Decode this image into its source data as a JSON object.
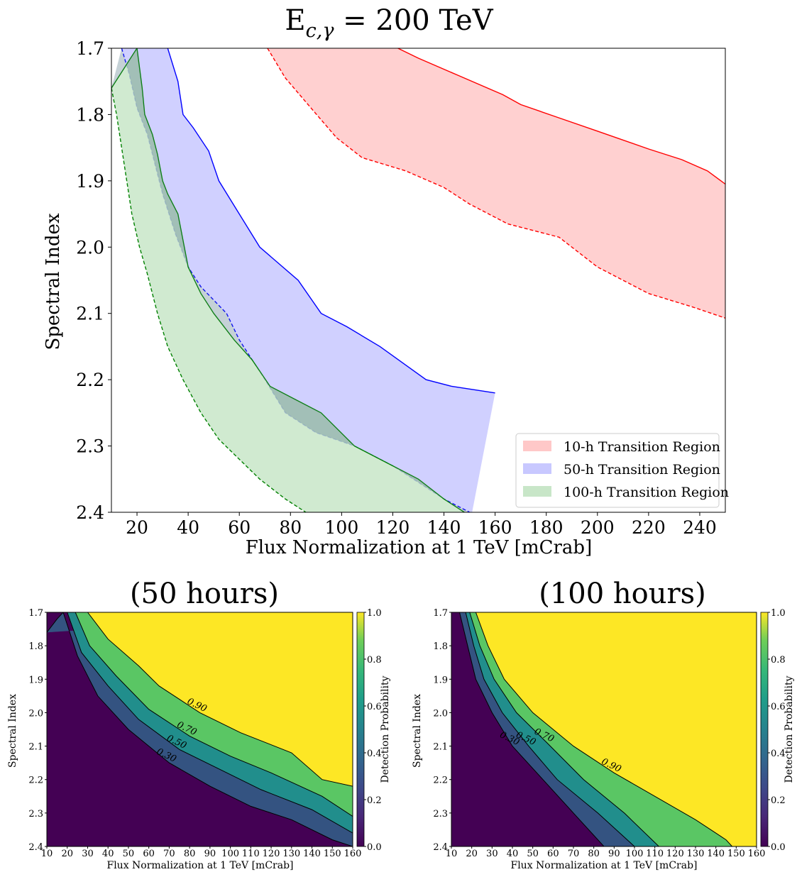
{
  "chart_data": [
    {
      "type": "area",
      "title": "E",
      "title_sub": "c,γ",
      "title_rest": " = 200 TeV",
      "xlabel": "Flux Normalization at 1 TeV [mCrab]",
      "ylabel": "Spectral Index",
      "xlim": [
        10,
        250
      ],
      "ylim": [
        1.7,
        2.4
      ],
      "y_inverted": true,
      "xticks": [
        20,
        40,
        60,
        80,
        100,
        120,
        140,
        160,
        180,
        200,
        220,
        240
      ],
      "yticks": [
        1.7,
        1.8,
        1.9,
        2.0,
        2.1,
        2.2,
        2.3,
        2.4
      ],
      "legend_position": "bottom-right",
      "series": [
        {
          "name": "10-h Transition Region",
          "color": "#ff0000",
          "fill": "#ffc8c8",
          "upper": [
            [
              122,
              1.7
            ],
            [
              130,
              1.715
            ],
            [
              145,
              1.74
            ],
            [
              163,
              1.77
            ],
            [
              170,
              1.785
            ],
            [
              185,
              1.805
            ],
            [
              200,
              1.825
            ],
            [
              220,
              1.852
            ],
            [
              233,
              1.868
            ],
            [
              243,
              1.885
            ],
            [
              250,
              1.905
            ]
          ],
          "lower": [
            [
              71,
              1.7
            ],
            [
              78,
              1.745
            ],
            [
              88,
              1.79
            ],
            [
              98,
              1.835
            ],
            [
              108,
              1.865
            ],
            [
              125,
              1.885
            ],
            [
              140,
              1.91
            ],
            [
              150,
              1.935
            ],
            [
              165,
              1.965
            ],
            [
              185,
              1.985
            ],
            [
              200,
              2.03
            ],
            [
              220,
              2.07
            ],
            [
              237,
              2.09
            ],
            [
              250,
              2.107
            ]
          ]
        },
        {
          "name": "50-h Transition Region",
          "color": "#0000ff",
          "fill": "#c8c8ff",
          "upper": [
            [
              32,
              1.7
            ],
            [
              36,
              1.75
            ],
            [
              38,
              1.8
            ],
            [
              42,
              1.82
            ],
            [
              48,
              1.855
            ],
            [
              52,
              1.9
            ],
            [
              60,
              1.95
            ],
            [
              68,
              2.0
            ],
            [
              83,
              2.05
            ],
            [
              92,
              2.1
            ],
            [
              102,
              2.12
            ],
            [
              115,
              2.15
            ],
            [
              124,
              2.175
            ],
            [
              133,
              2.2
            ],
            [
              143,
              2.21
            ],
            [
              160,
              2.22
            ]
          ],
          "lower": [
            [
              14,
              1.7
            ],
            [
              17,
              1.74
            ],
            [
              20,
              1.79
            ],
            [
              24,
              1.83
            ],
            [
              26,
              1.86
            ],
            [
              30,
              1.92
            ],
            [
              35,
              1.98
            ],
            [
              40,
              2.03
            ],
            [
              45,
              2.06
            ],
            [
              55,
              2.1
            ],
            [
              60,
              2.14
            ],
            [
              65,
              2.17
            ],
            [
              70,
              2.2
            ],
            [
              78,
              2.25
            ],
            [
              90,
              2.28
            ],
            [
              105,
              2.3
            ],
            [
              120,
              2.33
            ],
            [
              140,
              2.38
            ],
            [
              150,
              2.4
            ]
          ],
          "close_to": [
            [
              160,
              2.22
            ],
            [
              151,
              2.4
            ]
          ]
        },
        {
          "name": "100-h Transition Region",
          "color": "#008000",
          "fill": "#c8e6c8",
          "upper": [
            [
              10,
              1.76
            ],
            [
              15,
              1.73
            ],
            [
              20,
              1.7
            ],
            [
              22,
              1.76
            ],
            [
              23,
              1.8
            ],
            [
              26,
              1.83
            ],
            [
              28,
              1.86
            ],
            [
              30,
              1.9
            ],
            [
              32,
              1.92
            ],
            [
              36,
              1.95
            ],
            [
              40,
              2.03
            ],
            [
              45,
              2.07
            ],
            [
              50,
              2.1
            ],
            [
              58,
              2.14
            ],
            [
              65,
              2.17
            ],
            [
              72,
              2.21
            ],
            [
              82,
              2.23
            ],
            [
              92,
              2.25
            ],
            [
              105,
              2.3
            ],
            [
              120,
              2.33
            ],
            [
              130,
              2.35
            ],
            [
              140,
              2.38
            ],
            [
              148,
              2.4
            ]
          ],
          "lower": [
            [
              10,
              1.76
            ],
            [
              12,
              1.8
            ],
            [
              14,
              1.85
            ],
            [
              16,
              1.9
            ],
            [
              18,
              1.95
            ],
            [
              21,
              2.0
            ],
            [
              24,
              2.04
            ],
            [
              28,
              2.1
            ],
            [
              32,
              2.15
            ],
            [
              38,
              2.2
            ],
            [
              45,
              2.25
            ],
            [
              52,
              2.29
            ],
            [
              60,
              2.32
            ],
            [
              68,
              2.35
            ],
            [
              78,
              2.38
            ],
            [
              86,
              2.4
            ]
          ]
        }
      ]
    },
    {
      "type": "heatmap",
      "title": "(50 hours)",
      "xlabel": "Flux Normalization at 1 TeV [mCrab]",
      "ylabel": "Spectral Index",
      "colorbar_label": "Detection Probability",
      "xlim": [
        10,
        160
      ],
      "ylim": [
        1.7,
        2.4
      ],
      "y_inverted": true,
      "xticks": [
        10,
        20,
        30,
        40,
        50,
        60,
        70,
        80,
        90,
        100,
        110,
        120,
        130,
        140,
        150,
        160
      ],
      "yticks": [
        1.7,
        1.8,
        1.9,
        2.0,
        2.1,
        2.2,
        2.3,
        2.4
      ],
      "cbar_ticks": [
        0.0,
        0.2,
        0.4,
        0.6,
        0.8,
        1.0
      ],
      "contours": [
        {
          "level": 0.3,
          "label": "0.30",
          "points": [
            [
              10,
              1.76
            ],
            [
              15,
              1.72
            ],
            [
              18,
              1.7
            ],
            [
              25,
              1.83
            ],
            [
              35,
              1.95
            ],
            [
              50,
              2.05
            ],
            [
              70,
              2.15
            ],
            [
              90,
              2.22
            ],
            [
              110,
              2.28
            ],
            [
              130,
              2.32
            ],
            [
              150,
              2.38
            ],
            [
              160,
              2.4
            ]
          ]
        },
        {
          "level": 0.5,
          "label": "0.50",
          "points": [
            [
              20,
              1.7
            ],
            [
              27,
              1.82
            ],
            [
              40,
              1.92
            ],
            [
              55,
              2.02
            ],
            [
              75,
              2.11
            ],
            [
              95,
              2.17
            ],
            [
              115,
              2.23
            ],
            [
              140,
              2.29
            ],
            [
              160,
              2.36
            ]
          ]
        },
        {
          "level": 0.7,
          "label": "0.70",
          "points": [
            [
              24,
              1.7
            ],
            [
              31,
              1.8
            ],
            [
              44,
              1.89
            ],
            [
              60,
              1.99
            ],
            [
              80,
              2.07
            ],
            [
              100,
              2.13
            ],
            [
              120,
              2.18
            ],
            [
              145,
              2.25
            ],
            [
              160,
              2.31
            ]
          ]
        },
        {
          "level": 0.9,
          "label": "0.90",
          "points": [
            [
              30,
              1.7
            ],
            [
              40,
              1.78
            ],
            [
              55,
              1.86
            ],
            [
              65,
              1.92
            ],
            [
              85,
              2.0
            ],
            [
              105,
              2.06
            ],
            [
              130,
              2.12
            ],
            [
              145,
              2.2
            ],
            [
              160,
              2.22
            ]
          ]
        }
      ]
    },
    {
      "type": "heatmap",
      "title": "(100 hours)",
      "xlabel": "Flux Normalization at 1 TeV [mCrab]",
      "ylabel": "Spectral Index",
      "colorbar_label": "Detection Probability",
      "xlim": [
        10,
        160
      ],
      "ylim": [
        1.7,
        2.4
      ],
      "y_inverted": true,
      "xticks": [
        10,
        20,
        30,
        40,
        50,
        60,
        70,
        80,
        90,
        100,
        110,
        120,
        130,
        140,
        150,
        160
      ],
      "yticks": [
        1.7,
        1.8,
        1.9,
        2.0,
        2.1,
        2.2,
        2.3,
        2.4
      ],
      "cbar_ticks": [
        0.0,
        0.2,
        0.4,
        0.6,
        0.8,
        1.0
      ],
      "contours": [
        {
          "level": 0.3,
          "label": "0.30",
          "points": [
            [
              14,
              1.7
            ],
            [
              18,
              1.8
            ],
            [
              22,
              1.9
            ],
            [
              30,
              2.0
            ],
            [
              40,
              2.1
            ],
            [
              55,
              2.2
            ],
            [
              70,
              2.3
            ],
            [
              85,
              2.4
            ]
          ]
        },
        {
          "level": 0.5,
          "label": "0.50",
          "points": [
            [
              17,
              1.7
            ],
            [
              21,
              1.8
            ],
            [
              26,
              1.9
            ],
            [
              35,
              2.0
            ],
            [
              48,
              2.1
            ],
            [
              62,
              2.2
            ],
            [
              82,
              2.3
            ],
            [
              100,
              2.4
            ]
          ]
        },
        {
          "level": 0.7,
          "label": "0.70",
          "points": [
            [
              19,
              1.7
            ],
            [
              24,
              1.8
            ],
            [
              31,
              1.9
            ],
            [
              42,
              2.0
            ],
            [
              57,
              2.09
            ],
            [
              75,
              2.2
            ],
            [
              95,
              2.3
            ],
            [
              112,
              2.4
            ]
          ]
        },
        {
          "level": 0.9,
          "label": "0.90",
          "points": [
            [
              22,
              1.7
            ],
            [
              28,
              1.8
            ],
            [
              36,
              1.9
            ],
            [
              50,
              2.0
            ],
            [
              70,
              2.1
            ],
            [
              90,
              2.18
            ],
            [
              110,
              2.25
            ],
            [
              130,
              2.32
            ],
            [
              145,
              2.38
            ],
            [
              148,
              2.4
            ]
          ]
        }
      ]
    }
  ]
}
